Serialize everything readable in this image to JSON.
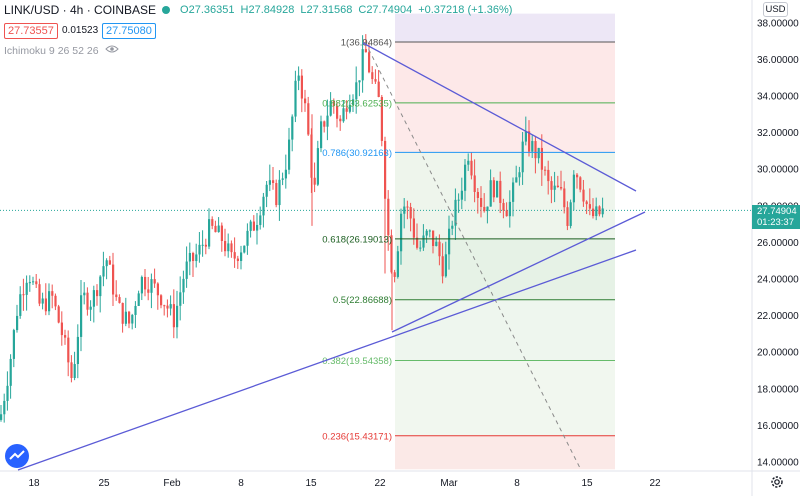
{
  "header": {
    "symbol": "LINK/USD · 4h · COINBASE",
    "ohlc": {
      "o_label": "O",
      "o_value": "27.36351",
      "h_label": "H",
      "h_value": "27.84928",
      "l_label": "L",
      "l_value": "27.31568",
      "c_label": "C",
      "c_value": "27.74904",
      "change": "+0.37218 (+1.36%)"
    },
    "sell_price": "27.73557",
    "spread": "0.01523",
    "buy_price": "27.75080",
    "indicator": "Ichimoku 9 26 52 26"
  },
  "price_axis": {
    "currency": "USD",
    "ticks": [
      "38.00000",
      "36.00000",
      "34.00000",
      "32.00000",
      "30.00000",
      "28.00000",
      "26.00000",
      "24.00000",
      "22.00000",
      "20.00000",
      "18.00000",
      "16.00000",
      "14.00000"
    ],
    "current_price": "27.74904",
    "countdown": "01:23:37"
  },
  "time_axis": {
    "ticks": [
      "18",
      "25",
      "Feb",
      "8",
      "15",
      "22",
      "Mar",
      "8",
      "15",
      "22"
    ]
  },
  "colors": {
    "up": "#26a69a",
    "down": "#ef5350",
    "trendline": "#5b5bd6",
    "fib_line": "#5c6bc0"
  },
  "fib_levels": [
    {
      "label": "1(36.94864)",
      "value": 36.94864,
      "color": "#555555"
    },
    {
      "label": "0.882(33.62535)",
      "value": 33.62535,
      "color": "#4caf50"
    },
    {
      "label": "0.786(30.92163)",
      "value": 30.92163,
      "color": "#2196f3"
    },
    {
      "label": "0.618(26.19013)",
      "value": 26.19013,
      "color": "#1b5e20"
    },
    {
      "label": "0.5(22.86688)",
      "value": 22.86688,
      "color": "#2e7d32"
    },
    {
      "label": "0.382(19.54358)",
      "value": 19.54358,
      "color": "#66bb6a"
    },
    {
      "label": "0.236(15.43171)",
      "value": 15.43171,
      "color": "#e53935"
    }
  ],
  "icons": {
    "eye": "eye-icon",
    "gear": "gear-icon",
    "logo": "tradingview-logo-icon"
  }
}
